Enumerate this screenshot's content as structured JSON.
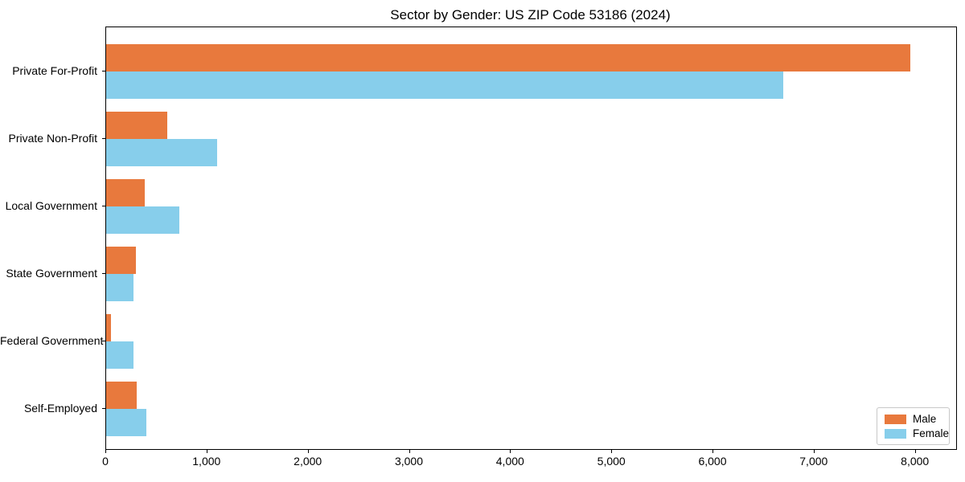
{
  "chart_data": {
    "type": "bar",
    "orientation": "horizontal",
    "title": "Sector by Gender: US ZIP Code 53186 (2024)",
    "categories": [
      "Private For-Profit",
      "Private Non-Profit",
      "Local Government",
      "State Government",
      "Federal Government",
      "Self-Employed"
    ],
    "series": [
      {
        "name": "Male",
        "color": "#E8793D",
        "values": [
          7950,
          600,
          380,
          295,
          45,
          300
        ]
      },
      {
        "name": "Female",
        "color": "#87CEEB",
        "values": [
          6690,
          1100,
          720,
          270,
          270,
          400
        ]
      }
    ],
    "xlabel": "",
    "ylabel": "",
    "xlim": [
      0,
      8400
    ],
    "x_ticks": [
      0,
      1000,
      2000,
      3000,
      4000,
      5000,
      6000,
      7000,
      8000
    ],
    "x_tick_labels": [
      "0",
      "1,000",
      "2,000",
      "3,000",
      "4,000",
      "5,000",
      "6,000",
      "7,000",
      "8,000"
    ],
    "legend_position": "lower-right",
    "grid": false,
    "colors": {
      "male": "#E8793D",
      "female": "#87CEEB",
      "spine": "#000000",
      "text": "#000000",
      "legend_border": "#c8c8c8",
      "background": "#ffffff"
    }
  }
}
